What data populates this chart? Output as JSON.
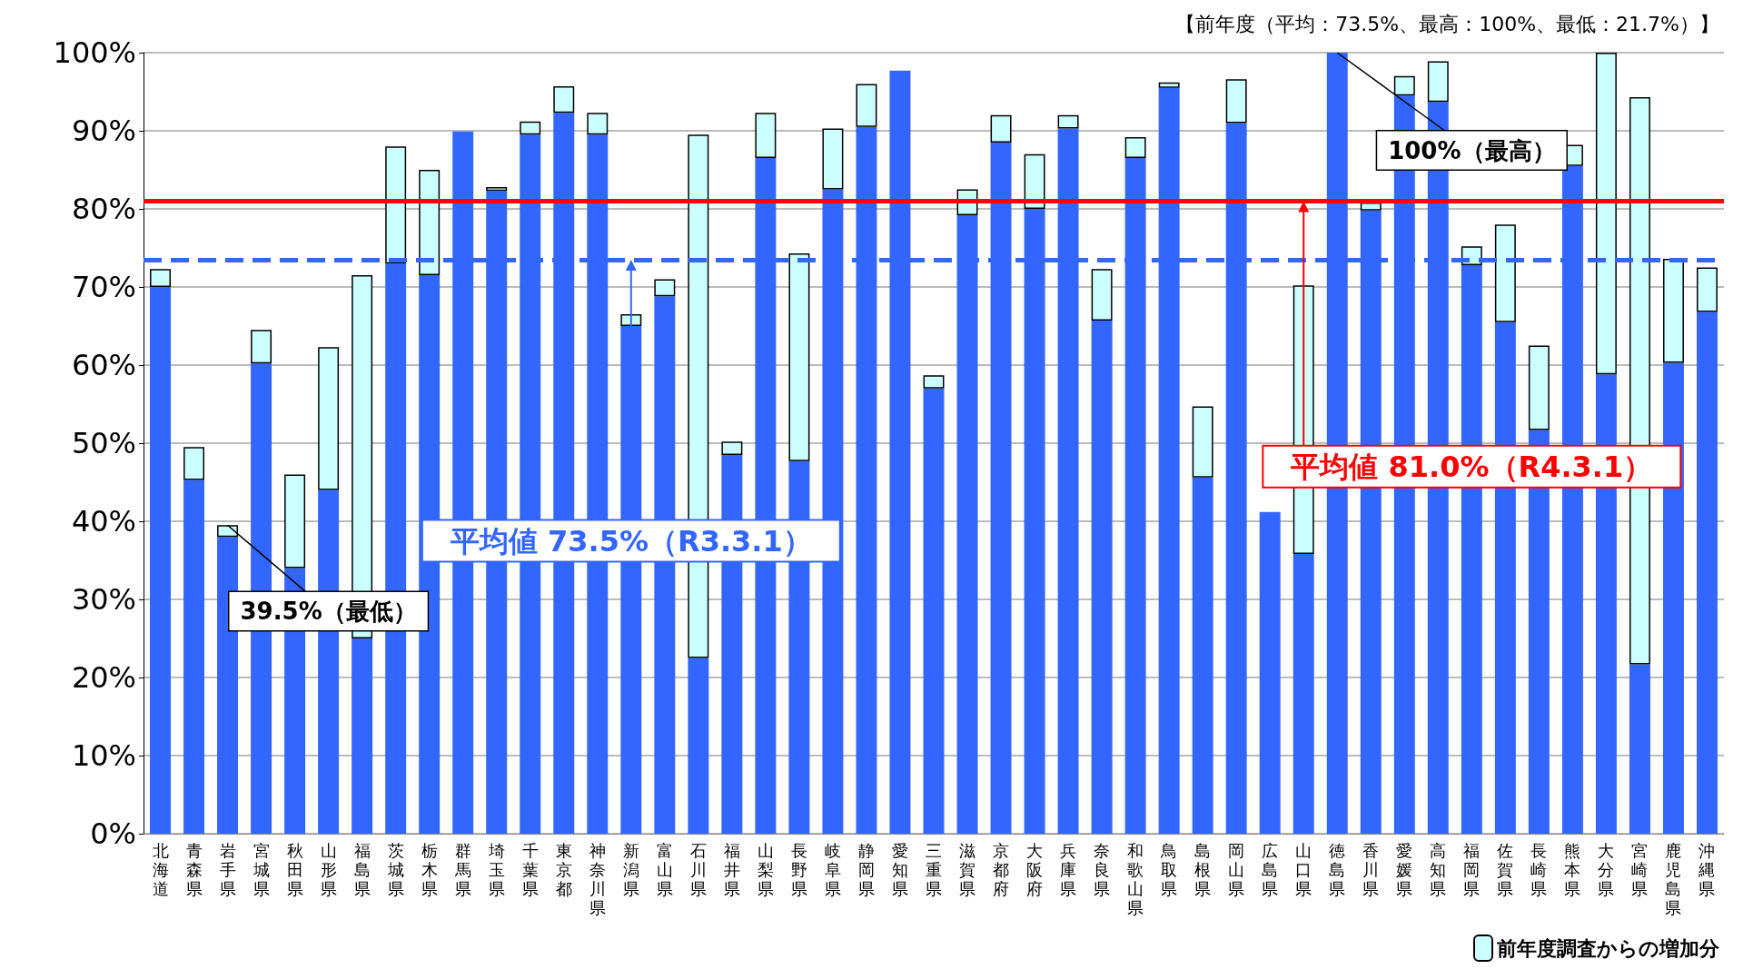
{
  "chart_data": {
    "type": "bar",
    "stacked": true,
    "title": "【前年度（平均：73.5%、最高：100%、最低：21.7%）】",
    "categories": [
      "北海道",
      "青森県",
      "岩手県",
      "宮城県",
      "秋田県",
      "山形県",
      "福島県",
      "茨城県",
      "栃木県",
      "群馬県",
      "埼玉県",
      "千葉県",
      "東京都",
      "神奈川県",
      "新潟県",
      "富山県",
      "石川県",
      "福井県",
      "山梨県",
      "長野県",
      "岐阜県",
      "静岡県",
      "愛知県",
      "三重県",
      "滋賀県",
      "京都府",
      "大阪府",
      "兵庫県",
      "奈良県",
      "和歌山県",
      "鳥取県",
      "島根県",
      "岡山県",
      "広島県",
      "山口県",
      "徳島県",
      "香川県",
      "愛媛県",
      "高知県",
      "福岡県",
      "佐賀県",
      "長崎県",
      "熊本県",
      "大分県",
      "宮崎県",
      "鹿児島県",
      "沖縄県"
    ],
    "series": [
      {
        "color": "#3366ff",
        "values": [
          70,
          45.3,
          38,
          60.2,
          34,
          44,
          25,
          73,
          71.5,
          89.9,
          82.3,
          89.5,
          92.3,
          89.5,
          65,
          68.8,
          22.5,
          48.5,
          86.5,
          47.7,
          82.5,
          90.5,
          97.7,
          57,
          79.2,
          88.5,
          80,
          90.3,
          65.7,
          86.5,
          95.5,
          45.6,
          91,
          41.2,
          35.8,
          100,
          79.8,
          94.5,
          93.7,
          72.8,
          65.5,
          51.7,
          85.5,
          58.8,
          21.7,
          60.3,
          66.8
        ]
      },
      {
        "name": "前年度調査からの増加分",
        "color": "#ccffff",
        "values": [
          2.3,
          4.2,
          1.5,
          4.3,
          12,
          18.3,
          46.5,
          15,
          13.5,
          0,
          0.5,
          1.7,
          3.4,
          2.8,
          1.5,
          2.2,
          67,
          1.7,
          5.8,
          26.6,
          7.8,
          5.5,
          0,
          1.7,
          3.3,
          3.5,
          7,
          1.7,
          6.6,
          2.7,
          0.7,
          9.1,
          5.6,
          0,
          34.4,
          0,
          1,
          2.5,
          5.2,
          2.4,
          12.5,
          10.8,
          2.7,
          41.2,
          72.6,
          13.3,
          5.7
        ]
      }
    ],
    "ylim": [
      0,
      100
    ],
    "yticks": [
      {
        "value": 0,
        "label": "0%"
      },
      {
        "value": 10,
        "label": "10%"
      },
      {
        "value": 20,
        "label": "20%"
      },
      {
        "value": 30,
        "label": "30%"
      },
      {
        "value": 40,
        "label": "40%"
      },
      {
        "value": 50,
        "label": "50%"
      },
      {
        "value": 60,
        "label": "60%"
      },
      {
        "value": 70,
        "label": "70%"
      },
      {
        "value": 80,
        "label": "80%"
      },
      {
        "value": 90,
        "label": "90%"
      },
      {
        "value": 100,
        "label": "100%"
      }
    ],
    "grid": "y",
    "legend": "bottom right",
    "ref_lines": [
      {
        "axis": "y",
        "value": 73.5,
        "label": "平均値 73.5%（R3.3.1）",
        "color": "#3366ff",
        "line_style": "dashed"
      },
      {
        "axis": "y",
        "value": 81.0,
        "label": "平均値 81.0%（R4.3.1）",
        "color": "#ff0000",
        "line_style": "solid"
      }
    ],
    "annotations": [
      {
        "text": "39.5%（最低）",
        "x": "岩手県",
        "y": 39.5
      },
      {
        "text": "100%（最高）",
        "x": "徳島県",
        "y": 100
      }
    ]
  }
}
